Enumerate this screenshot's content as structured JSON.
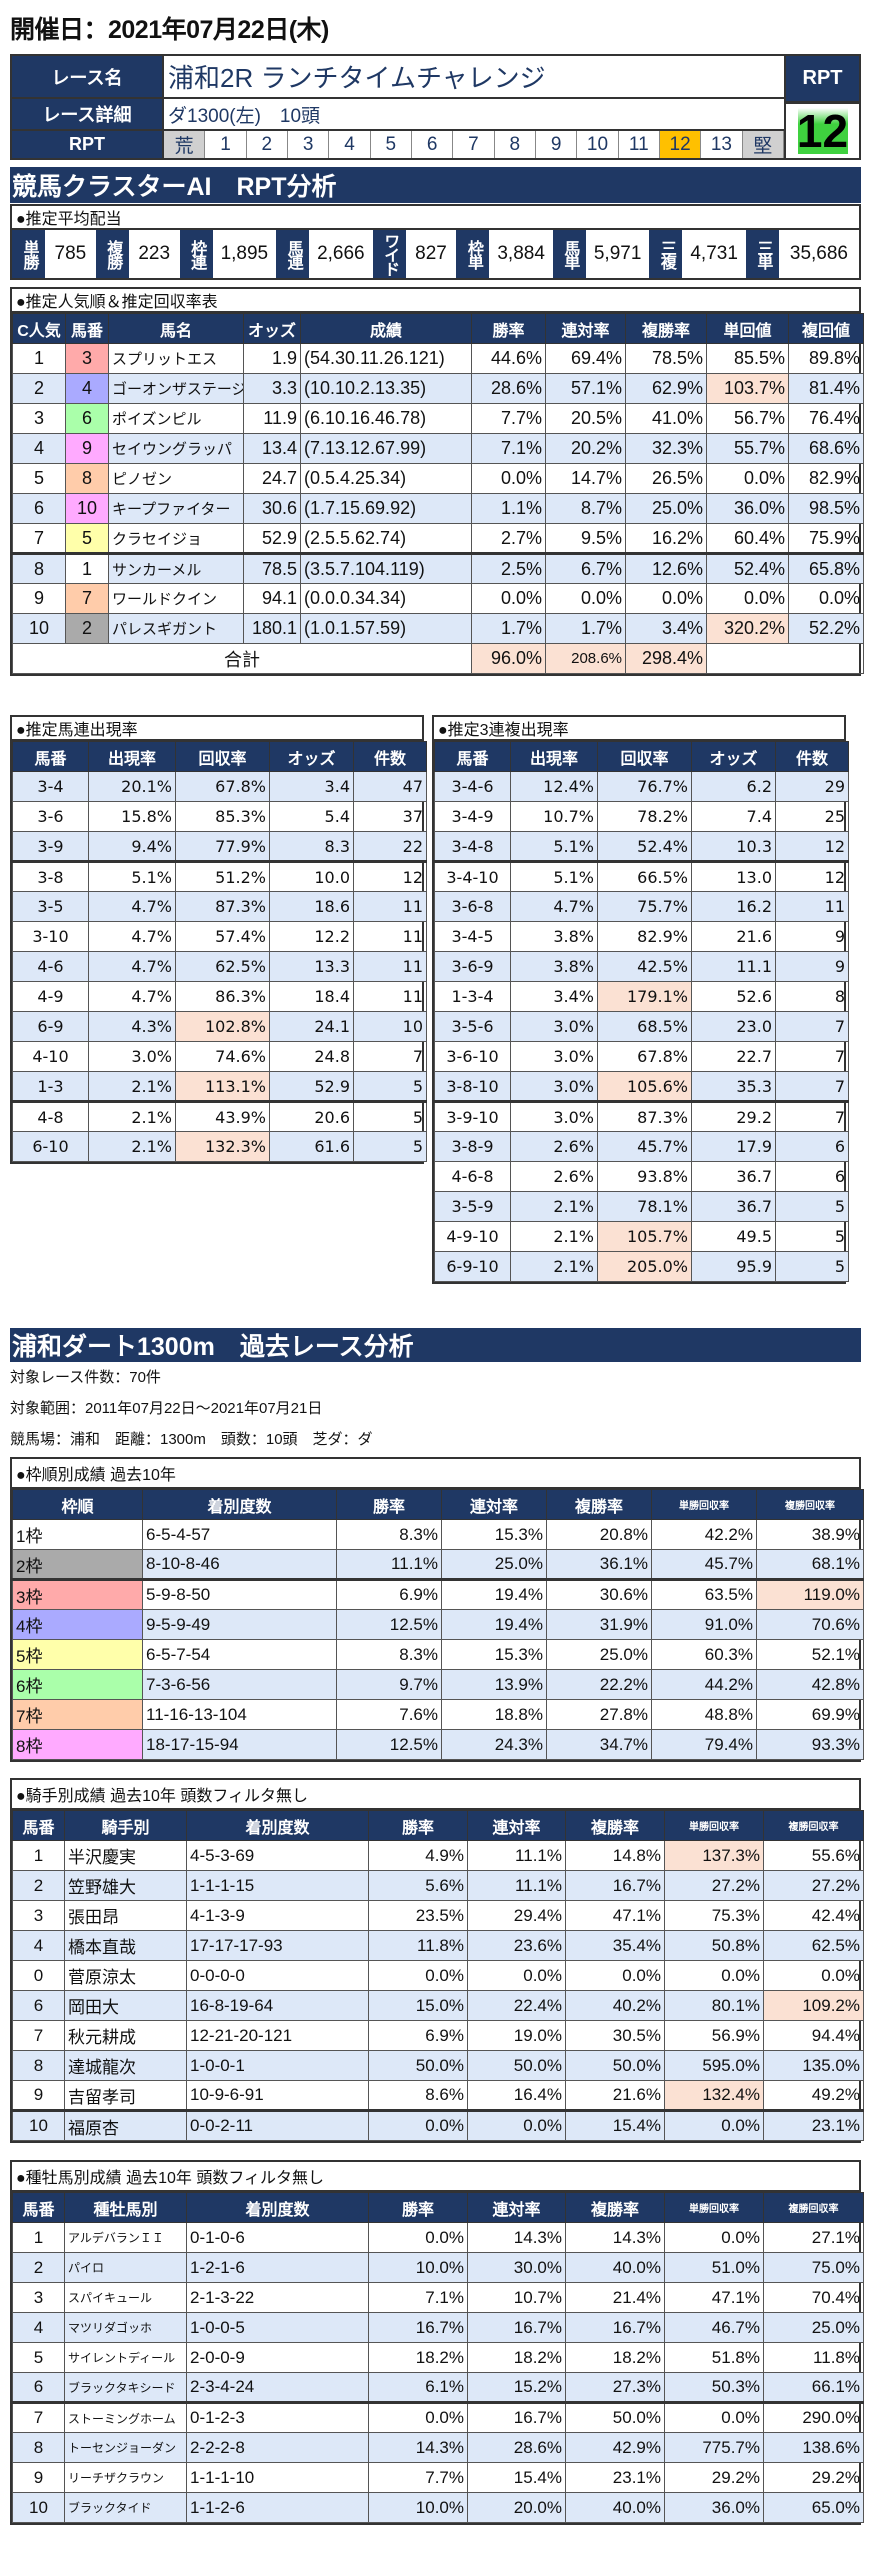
{
  "header": {
    "title": "開催日：2021年07月22日(木)"
  },
  "race": {
    "name_label": "レース名",
    "name": "浦和2R ランチタイムチャレンジ",
    "detail_label": "レース詳細",
    "detail": "ダ1300(左)　10頭",
    "rpt_label": "RPT",
    "scale": [
      "荒",
      "1",
      "2",
      "3",
      "4",
      "5",
      "6",
      "7",
      "8",
      "9",
      "10",
      "11",
      "12",
      "13",
      "堅"
    ],
    "rpt_value": "12",
    "rpt_selected": 12
  },
  "analysis": {
    "title": "競馬クラスターAI　RPT分析"
  },
  "payout": {
    "label": "●推定平均配当",
    "items": [
      {
        "type": "単勝",
        "value": "785"
      },
      {
        "type": "複勝",
        "value": "223"
      },
      {
        "type": "枠連",
        "value": "1,895"
      },
      {
        "type": "馬連",
        "value": "2,666"
      },
      {
        "type": "ワイド",
        "value": "827"
      },
      {
        "type": "枠単",
        "value": "3,884"
      },
      {
        "type": "馬単",
        "value": "5,971"
      },
      {
        "type": "三複",
        "value": "4,731"
      },
      {
        "type": "三単",
        "value": "35,686"
      }
    ]
  },
  "popularity": {
    "label": "●推定人気順＆推定回収率表",
    "headers": [
      "C人気",
      "馬番",
      "馬名",
      "オッズ",
      "成績",
      "勝率",
      "連対率",
      "複勝率",
      "単回値",
      "複回値"
    ],
    "rows": [
      [
        "1",
        "3",
        "スプリットエス",
        "1.9",
        "(54.30.11.26.121)",
        "44.6%",
        "69.4%",
        "78.5%",
        "85.5%",
        "89.8%"
      ],
      [
        "2",
        "4",
        "ゴーオンザステージ",
        "3.3",
        "(10.10.2.13.35)",
        "28.6%",
        "57.1%",
        "62.9%",
        "103.7%",
        "81.4%"
      ],
      [
        "3",
        "6",
        "ポイズンピル",
        "11.9",
        "(6.10.16.46.78)",
        "7.7%",
        "20.5%",
        "41.0%",
        "56.7%",
        "76.4%"
      ],
      [
        "4",
        "9",
        "セイウングラッパ",
        "13.4",
        "(7.13.12.67.99)",
        "7.1%",
        "20.2%",
        "32.3%",
        "55.7%",
        "68.6%"
      ],
      [
        "5",
        "8",
        "ピノゼン",
        "24.7",
        "(0.5.4.25.34)",
        "0.0%",
        "14.7%",
        "26.5%",
        "0.0%",
        "82.9%"
      ],
      [
        "6",
        "10",
        "キープファイター",
        "30.6",
        "(1.7.15.69.92)",
        "1.1%",
        "8.7%",
        "25.0%",
        "36.0%",
        "98.5%"
      ],
      [
        "7",
        "5",
        "クラセイジョ",
        "52.9",
        "(2.5.5.62.74)",
        "2.7%",
        "9.5%",
        "16.2%",
        "60.4%",
        "75.9%"
      ],
      [
        "8",
        "1",
        "サンカーメル",
        "78.5",
        "(3.5.7.104.119)",
        "2.5%",
        "6.7%",
        "12.6%",
        "52.4%",
        "65.8%"
      ],
      [
        "9",
        "7",
        "ワールドクイン",
        "94.1",
        "(0.0.0.34.34)",
        "0.0%",
        "0.0%",
        "0.0%",
        "0.0%",
        "0.0%"
      ],
      [
        "10",
        "2",
        "パレスギガント",
        "180.1",
        "(1.0.1.57.59)",
        "1.7%",
        "1.7%",
        "3.4%",
        "320.2%",
        "52.2%"
      ]
    ],
    "total": {
      "label": "合計",
      "win": "96.0%",
      "quinella": "208.6%",
      "place": "298.4%"
    }
  },
  "umaren": {
    "label": "●推定馬連出現率",
    "headers": [
      "馬番",
      "出現率",
      "回収率",
      "オッズ",
      "件数"
    ],
    "rows": [
      [
        "3-4",
        "20.1%",
        "67.8%",
        "3.4",
        "47"
      ],
      [
        "3-6",
        "15.8%",
        "85.3%",
        "5.4",
        "37"
      ],
      [
        "3-9",
        "9.4%",
        "77.9%",
        "8.3",
        "22"
      ],
      [
        "3-8",
        "5.1%",
        "51.2%",
        "10.0",
        "12"
      ],
      [
        "3-5",
        "4.7%",
        "87.3%",
        "18.6",
        "11"
      ],
      [
        "3-10",
        "4.7%",
        "57.4%",
        "12.2",
        "11"
      ],
      [
        "4-6",
        "4.7%",
        "62.5%",
        "13.3",
        "11"
      ],
      [
        "4-9",
        "4.7%",
        "86.3%",
        "18.4",
        "11"
      ],
      [
        "6-9",
        "4.3%",
        "102.8%",
        "24.1",
        "10"
      ],
      [
        "4-10",
        "3.0%",
        "74.6%",
        "24.8",
        "7"
      ],
      [
        "1-3",
        "2.1%",
        "113.1%",
        "52.9",
        "5"
      ],
      [
        "4-8",
        "2.1%",
        "43.9%",
        "20.6",
        "5"
      ],
      [
        "6-10",
        "2.1%",
        "132.3%",
        "61.6",
        "5"
      ]
    ]
  },
  "trio": {
    "label": "●推定3連複出現率",
    "headers": [
      "馬番",
      "出現率",
      "回収率",
      "オッズ",
      "件数"
    ],
    "rows": [
      [
        "3-4-6",
        "12.4%",
        "76.7%",
        "6.2",
        "29"
      ],
      [
        "3-4-9",
        "10.7%",
        "78.2%",
        "7.4",
        "25"
      ],
      [
        "3-4-8",
        "5.1%",
        "52.4%",
        "10.3",
        "12"
      ],
      [
        "3-4-10",
        "5.1%",
        "66.5%",
        "13.0",
        "12"
      ],
      [
        "3-6-8",
        "4.7%",
        "75.7%",
        "16.2",
        "11"
      ],
      [
        "3-4-5",
        "3.8%",
        "82.9%",
        "21.6",
        "9"
      ],
      [
        "3-6-9",
        "3.8%",
        "42.5%",
        "11.1",
        "9"
      ],
      [
        "1-3-4",
        "3.4%",
        "179.1%",
        "52.6",
        "8"
      ],
      [
        "3-5-6",
        "3.0%",
        "68.5%",
        "23.0",
        "7"
      ],
      [
        "3-6-10",
        "3.0%",
        "67.8%",
        "22.7",
        "7"
      ],
      [
        "3-8-10",
        "3.0%",
        "105.6%",
        "35.3",
        "7"
      ],
      [
        "3-9-10",
        "3.0%",
        "87.3%",
        "29.2",
        "7"
      ],
      [
        "3-8-9",
        "2.6%",
        "45.7%",
        "17.9",
        "6"
      ],
      [
        "4-6-8",
        "2.6%",
        "93.8%",
        "36.7",
        "6"
      ],
      [
        "3-5-9",
        "2.1%",
        "78.1%",
        "36.7",
        "5"
      ],
      [
        "4-9-10",
        "2.1%",
        "105.7%",
        "49.5",
        "5"
      ],
      [
        "6-9-10",
        "2.1%",
        "205.0%",
        "95.9",
        "5"
      ]
    ]
  },
  "past": {
    "title": "浦和ダート1300m　過去レース分析",
    "count": "対象レース件数：70件",
    "range": "対象範囲：2011年07月22日～2021年07月21日",
    "conditions": "競馬場：浦和　距離：1300m　頭数：10頭　芝ダ：ダ"
  },
  "frame": {
    "label": "●枠順別成績 過去10年",
    "headers": [
      "枠順",
      "着別度数",
      "勝率",
      "連対率",
      "複勝率",
      "単勝回収率",
      "複勝回収率"
    ],
    "rows": [
      [
        "1枠",
        "6-5-4-57",
        "8.3%",
        "15.3%",
        "20.8%",
        "42.2%",
        "38.9%"
      ],
      [
        "2枠",
        "8-10-8-46",
        "11.1%",
        "25.0%",
        "36.1%",
        "45.7%",
        "68.1%"
      ],
      [
        "3枠",
        "5-9-8-50",
        "6.9%",
        "19.4%",
        "30.6%",
        "63.5%",
        "119.0%"
      ],
      [
        "4枠",
        "9-5-9-49",
        "12.5%",
        "19.4%",
        "31.9%",
        "91.0%",
        "70.6%"
      ],
      [
        "5枠",
        "6-5-7-54",
        "8.3%",
        "15.3%",
        "25.0%",
        "60.3%",
        "52.1%"
      ],
      [
        "6枠",
        "7-3-6-56",
        "9.7%",
        "13.9%",
        "22.2%",
        "44.2%",
        "42.8%"
      ],
      [
        "7枠",
        "11-16-13-104",
        "7.6%",
        "18.8%",
        "27.8%",
        "48.8%",
        "69.9%"
      ],
      [
        "8枠",
        "18-17-15-94",
        "12.5%",
        "24.3%",
        "34.7%",
        "79.4%",
        "93.3%"
      ]
    ]
  },
  "jockey": {
    "label": "●騎手別成績 過去10年 頭数フィルタ無し",
    "headers": [
      "馬番",
      "騎手別",
      "着別度数",
      "勝率",
      "連対率",
      "複勝率",
      "単勝回収率",
      "複勝回収率"
    ],
    "rows": [
      [
        "1",
        "半沢慶実",
        "4-5-3-69",
        "4.9%",
        "11.1%",
        "14.8%",
        "137.3%",
        "55.6%"
      ],
      [
        "2",
        "笠野雄大",
        "1-1-1-15",
        "5.6%",
        "11.1%",
        "16.7%",
        "27.2%",
        "27.2%"
      ],
      [
        "3",
        "張田昂",
        "4-1-3-9",
        "23.5%",
        "29.4%",
        "47.1%",
        "75.3%",
        "42.4%"
      ],
      [
        "4",
        "橋本直哉",
        "17-17-17-93",
        "11.8%",
        "23.6%",
        "35.4%",
        "50.8%",
        "62.5%"
      ],
      [
        "0",
        "菅原涼太",
        "0-0-0-0",
        "0.0%",
        "0.0%",
        "0.0%",
        "0.0%",
        "0.0%"
      ],
      [
        "6",
        "岡田大",
        "16-8-19-64",
        "15.0%",
        "22.4%",
        "40.2%",
        "80.1%",
        "109.2%"
      ],
      [
        "7",
        "秋元耕成",
        "12-21-20-121",
        "6.9%",
        "19.0%",
        "30.5%",
        "56.9%",
        "94.4%"
      ],
      [
        "8",
        "達城龍次",
        "1-0-0-1",
        "50.0%",
        "50.0%",
        "50.0%",
        "595.0%",
        "135.0%"
      ],
      [
        "9",
        "吉留孝司",
        "10-9-6-91",
        "8.6%",
        "16.4%",
        "21.6%",
        "132.4%",
        "49.2%"
      ],
      [
        "10",
        "福原杏",
        "0-0-2-11",
        "0.0%",
        "0.0%",
        "15.4%",
        "0.0%",
        "23.1%"
      ]
    ]
  },
  "sire": {
    "label": "●種牡馬別成績 過去10年 頭数フィルタ無し",
    "headers": [
      "馬番",
      "種牡馬別",
      "着別度数",
      "勝率",
      "連対率",
      "複勝率",
      "単勝回収率",
      "複勝回収率"
    ],
    "rows": [
      [
        "1",
        "アルデバランＩＩ",
        "0-1-0-6",
        "0.0%",
        "14.3%",
        "14.3%",
        "0.0%",
        "27.1%"
      ],
      [
        "2",
        "パイロ",
        "1-2-1-6",
        "10.0%",
        "30.0%",
        "40.0%",
        "51.0%",
        "75.0%"
      ],
      [
        "3",
        "スパイキュール",
        "2-1-3-22",
        "7.1%",
        "10.7%",
        "21.4%",
        "47.1%",
        "70.4%"
      ],
      [
        "4",
        "マツリダゴッホ",
        "1-0-0-5",
        "16.7%",
        "16.7%",
        "16.7%",
        "46.7%",
        "25.0%"
      ],
      [
        "5",
        "サイレントディール",
        "2-0-0-9",
        "18.2%",
        "18.2%",
        "18.2%",
        "51.8%",
        "11.8%"
      ],
      [
        "6",
        "ブラックタキシード",
        "2-3-4-24",
        "6.1%",
        "15.2%",
        "27.3%",
        "50.3%",
        "66.1%"
      ],
      [
        "7",
        "ストーミングホーム",
        "0-1-2-3",
        "0.0%",
        "16.7%",
        "50.0%",
        "0.0%",
        "290.0%"
      ],
      [
        "8",
        "トーセンジョーダン",
        "2-2-2-8",
        "14.3%",
        "28.6%",
        "42.9%",
        "775.7%",
        "138.6%"
      ],
      [
        "9",
        "リーチザクラウン",
        "1-1-1-10",
        "7.7%",
        "15.4%",
        "23.1%",
        "29.2%",
        "29.2%"
      ],
      [
        "10",
        "ブラックタイド",
        "1-1-2-6",
        "10.0%",
        "20.0%",
        "40.0%",
        "36.0%",
        "65.0%"
      ]
    ]
  },
  "colors": {
    "navy": "#1f3864",
    "highlight": "#fbe1d3",
    "alt_row": "#dde8f8",
    "rpt_selected": "#ffc000",
    "frames": [
      "#ffffff",
      "#aaaaaa",
      "#ffaaaa",
      "#aaaaff",
      "#ffffaa",
      "#aaffaa",
      "#ffccaa",
      "#ffaaff"
    ]
  }
}
